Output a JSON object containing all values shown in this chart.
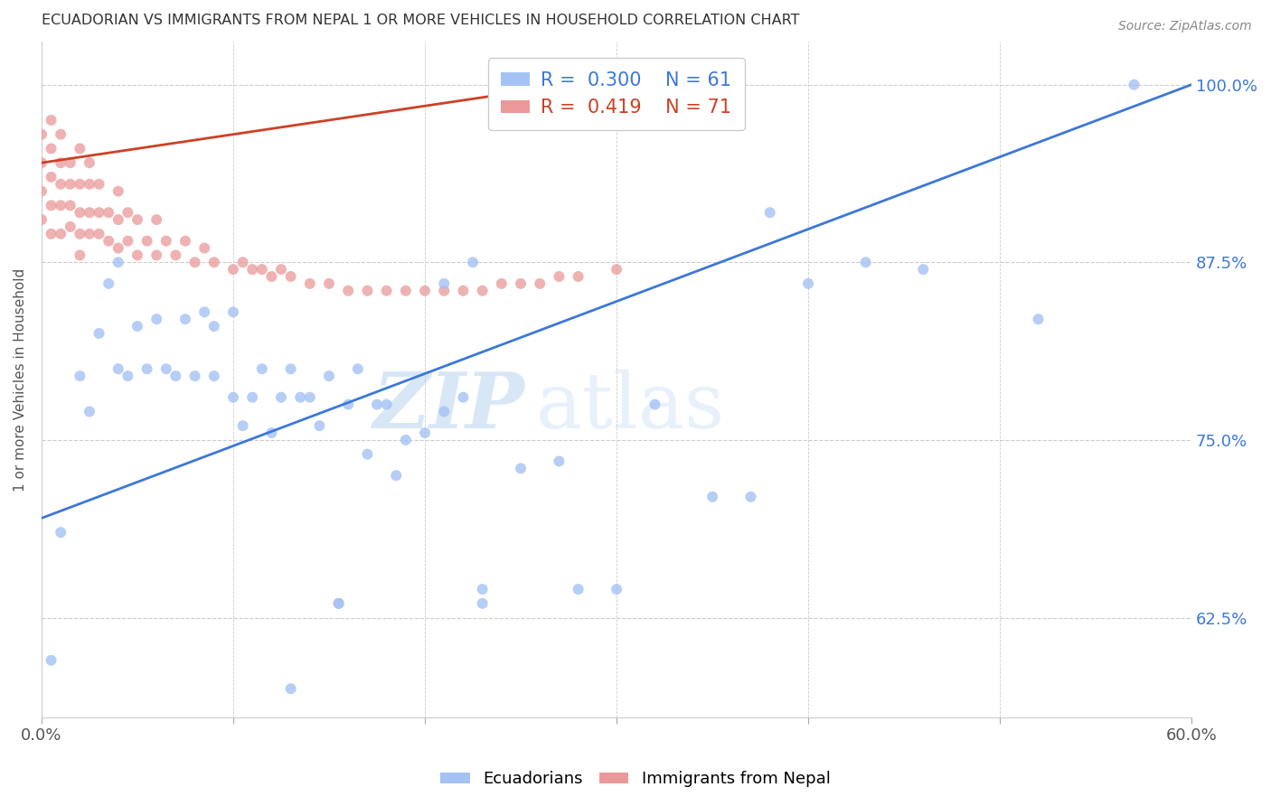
{
  "title": "ECUADORIAN VS IMMIGRANTS FROM NEPAL 1 OR MORE VEHICLES IN HOUSEHOLD CORRELATION CHART",
  "source": "Source: ZipAtlas.com",
  "ylabel": "1 or more Vehicles in Household",
  "xlim": [
    0.0,
    0.6
  ],
  "ylim": [
    0.555,
    1.03
  ],
  "yticks": [
    0.625,
    0.75,
    0.875,
    1.0
  ],
  "ytick_labels": [
    "62.5%",
    "75.0%",
    "87.5%",
    "100.0%"
  ],
  "xticks": [
    0.0,
    0.1,
    0.2,
    0.3,
    0.4,
    0.5,
    0.6
  ],
  "xtick_labels": [
    "0.0%",
    "",
    "",
    "",
    "",
    "",
    "60.0%"
  ],
  "legend_r1": "R =  0.300",
  "legend_n1": "N = 61",
  "legend_r2": "R =  0.419",
  "legend_n2": "N = 71",
  "color_blue": "#a4c2f4",
  "color_pink": "#ea9999",
  "color_blue_line": "#3c78d8",
  "color_pink_line": "#cc4125",
  "watermark_zip": "ZIP",
  "watermark_atlas": "atlas",
  "blue_x": [
    0.005,
    0.01,
    0.02,
    0.025,
    0.03,
    0.035,
    0.04,
    0.04,
    0.045,
    0.05,
    0.055,
    0.06,
    0.065,
    0.07,
    0.075,
    0.08,
    0.085,
    0.09,
    0.09,
    0.1,
    0.1,
    0.105,
    0.11,
    0.115,
    0.12,
    0.125,
    0.13,
    0.135,
    0.14,
    0.145,
    0.15,
    0.155,
    0.16,
    0.165,
    0.17,
    0.175,
    0.18,
    0.19,
    0.2,
    0.21,
    0.22,
    0.225,
    0.23,
    0.25,
    0.27,
    0.28,
    0.3,
    0.32,
    0.35,
    0.37,
    0.38,
    0.4,
    0.43,
    0.46,
    0.52,
    0.57,
    0.21,
    0.23,
    0.185,
    0.155,
    0.13
  ],
  "blue_y": [
    0.595,
    0.685,
    0.795,
    0.77,
    0.825,
    0.86,
    0.8,
    0.875,
    0.795,
    0.83,
    0.8,
    0.835,
    0.8,
    0.795,
    0.835,
    0.795,
    0.84,
    0.795,
    0.83,
    0.78,
    0.84,
    0.76,
    0.78,
    0.8,
    0.755,
    0.78,
    0.8,
    0.78,
    0.78,
    0.76,
    0.795,
    0.635,
    0.775,
    0.8,
    0.74,
    0.775,
    0.775,
    0.75,
    0.755,
    0.77,
    0.78,
    0.875,
    0.645,
    0.73,
    0.735,
    0.645,
    0.645,
    0.775,
    0.71,
    0.71,
    0.91,
    0.86,
    0.875,
    0.87,
    0.835,
    1.0,
    0.86,
    0.635,
    0.725,
    0.635,
    0.575
  ],
  "pink_x": [
    0.0,
    0.0,
    0.0,
    0.0,
    0.005,
    0.005,
    0.005,
    0.005,
    0.005,
    0.01,
    0.01,
    0.01,
    0.01,
    0.01,
    0.015,
    0.015,
    0.015,
    0.015,
    0.02,
    0.02,
    0.02,
    0.02,
    0.02,
    0.025,
    0.025,
    0.025,
    0.025,
    0.03,
    0.03,
    0.03,
    0.035,
    0.035,
    0.04,
    0.04,
    0.04,
    0.045,
    0.045,
    0.05,
    0.05,
    0.055,
    0.06,
    0.06,
    0.065,
    0.07,
    0.075,
    0.08,
    0.085,
    0.09,
    0.1,
    0.105,
    0.11,
    0.115,
    0.12,
    0.125,
    0.13,
    0.14,
    0.15,
    0.16,
    0.17,
    0.18,
    0.19,
    0.2,
    0.21,
    0.22,
    0.23,
    0.24,
    0.25,
    0.26,
    0.27,
    0.28,
    0.3
  ],
  "pink_y": [
    0.905,
    0.925,
    0.945,
    0.965,
    0.895,
    0.915,
    0.935,
    0.955,
    0.975,
    0.895,
    0.915,
    0.93,
    0.945,
    0.965,
    0.9,
    0.915,
    0.93,
    0.945,
    0.88,
    0.895,
    0.91,
    0.93,
    0.955,
    0.895,
    0.91,
    0.93,
    0.945,
    0.895,
    0.91,
    0.93,
    0.89,
    0.91,
    0.885,
    0.905,
    0.925,
    0.89,
    0.91,
    0.88,
    0.905,
    0.89,
    0.88,
    0.905,
    0.89,
    0.88,
    0.89,
    0.875,
    0.885,
    0.875,
    0.87,
    0.875,
    0.87,
    0.87,
    0.865,
    0.87,
    0.865,
    0.86,
    0.86,
    0.855,
    0.855,
    0.855,
    0.855,
    0.855,
    0.855,
    0.855,
    0.855,
    0.86,
    0.86,
    0.86,
    0.865,
    0.865,
    0.87
  ],
  "blue_line_x0": 0.0,
  "blue_line_y0": 0.695,
  "blue_line_x1": 0.6,
  "blue_line_y1": 1.0,
  "pink_line_x0": 0.0,
  "pink_line_y0": 0.945,
  "pink_line_x1": 0.3,
  "pink_line_y1": 1.005
}
